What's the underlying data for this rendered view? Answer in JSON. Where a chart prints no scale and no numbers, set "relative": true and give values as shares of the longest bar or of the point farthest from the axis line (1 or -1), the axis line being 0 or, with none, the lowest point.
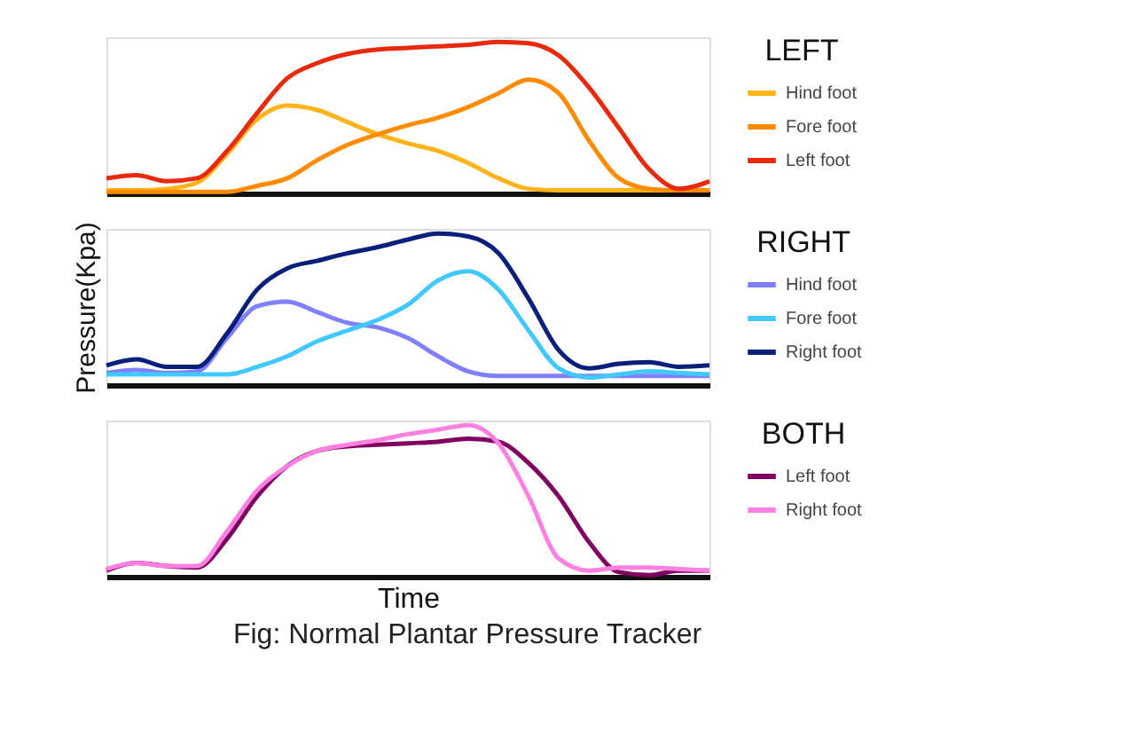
{
  "chart_data": [
    {
      "type": "line",
      "relative": true,
      "legend_title": "LEFT",
      "legend": "right",
      "tick_labels": false,
      "line_style": "solid",
      "marker": "none",
      "categories": [
        null,
        null,
        null,
        null,
        null,
        null,
        null,
        null,
        null,
        null,
        null,
        null,
        null,
        null,
        null,
        null,
        null,
        null,
        null,
        null,
        null
      ],
      "series": [
        {
          "name": "Hind foot",
          "color": "#ffb31a",
          "values": [
            0.02,
            0.02,
            0.03,
            0.07,
            0.26,
            0.49,
            0.58,
            0.55,
            0.47,
            0.39,
            0.33,
            0.28,
            0.2,
            0.1,
            0.03,
            0.02,
            0.02,
            0.02,
            0.02,
            0.02,
            0.02
          ]
        },
        {
          "name": "Fore foot",
          "color": "#ff8c00",
          "values": [
            0.01,
            0.01,
            0.01,
            0.01,
            0.01,
            0.05,
            0.1,
            0.22,
            0.32,
            0.39,
            0.45,
            0.5,
            0.57,
            0.66,
            0.75,
            0.66,
            0.35,
            0.1,
            0.03,
            0.02,
            0.02
          ]
        },
        {
          "name": "Left foot",
          "color": "#e8290b",
          "values": [
            0.1,
            0.12,
            0.08,
            0.1,
            0.28,
            0.53,
            0.76,
            0.86,
            0.92,
            0.95,
            0.96,
            0.97,
            0.98,
            1.0,
            0.99,
            0.91,
            0.7,
            0.43,
            0.16,
            0.03,
            0.08
          ]
        }
      ]
    },
    {
      "type": "line",
      "relative": true,
      "legend_title": "RIGHT",
      "legend": "right",
      "tick_labels": false,
      "ylabel": "Pressure(Kpa)",
      "line_style": "solid",
      "marker": "none",
      "categories": [
        null,
        null,
        null,
        null,
        null,
        null,
        null,
        null,
        null,
        null,
        null,
        null,
        null,
        null,
        null,
        null,
        null,
        null,
        null,
        null,
        null
      ],
      "series": [
        {
          "name": "Hind foot",
          "color": "#8080ff",
          "values": [
            0.08,
            0.1,
            0.08,
            0.09,
            0.31,
            0.52,
            0.55,
            0.48,
            0.41,
            0.38,
            0.31,
            0.19,
            0.09,
            0.06,
            0.06,
            0.06,
            0.06,
            0.06,
            0.06,
            0.06,
            0.06
          ]
        },
        {
          "name": "Fore foot",
          "color": "#40c8ff",
          "values": [
            0.07,
            0.07,
            0.07,
            0.07,
            0.07,
            0.12,
            0.19,
            0.29,
            0.36,
            0.43,
            0.53,
            0.69,
            0.75,
            0.63,
            0.36,
            0.11,
            0.05,
            0.07,
            0.09,
            0.08,
            0.07
          ]
        },
        {
          "name": "Right foot",
          "color": "#0a1f7a",
          "values": [
            0.13,
            0.17,
            0.12,
            0.12,
            0.34,
            0.63,
            0.77,
            0.82,
            0.87,
            0.91,
            0.96,
            1.0,
            0.98,
            0.87,
            0.57,
            0.23,
            0.11,
            0.14,
            0.15,
            0.12,
            0.13
          ]
        }
      ]
    },
    {
      "type": "line",
      "relative": true,
      "legend_title": "BOTH",
      "legend": "right",
      "tick_labels": false,
      "xlabel": "Time",
      "line_style": "solid",
      "marker": "none",
      "annotations": [
        "Fig: Normal Plantar Pressure Tracker"
      ],
      "categories": [
        null,
        null,
        null,
        null,
        null,
        null,
        null,
        null,
        null,
        null,
        null,
        null,
        null,
        null,
        null,
        null,
        null,
        null,
        null,
        null,
        null
      ],
      "series": [
        {
          "name": "Left foot",
          "color": "#800060",
          "values": [
            0.04,
            0.09,
            0.07,
            0.06,
            0.25,
            0.53,
            0.73,
            0.83,
            0.86,
            0.87,
            0.88,
            0.89,
            0.91,
            0.89,
            0.75,
            0.53,
            0.23,
            0.03,
            0.01,
            0.04,
            0.04
          ]
        },
        {
          "name": "Right foot",
          "color": "#ff80e0",
          "values": [
            0.05,
            0.09,
            0.07,
            0.07,
            0.3,
            0.57,
            0.73,
            0.83,
            0.87,
            0.9,
            0.94,
            0.97,
            1.0,
            0.88,
            0.53,
            0.12,
            0.04,
            0.06,
            0.06,
            0.05,
            0.04
          ]
        }
      ]
    }
  ]
}
